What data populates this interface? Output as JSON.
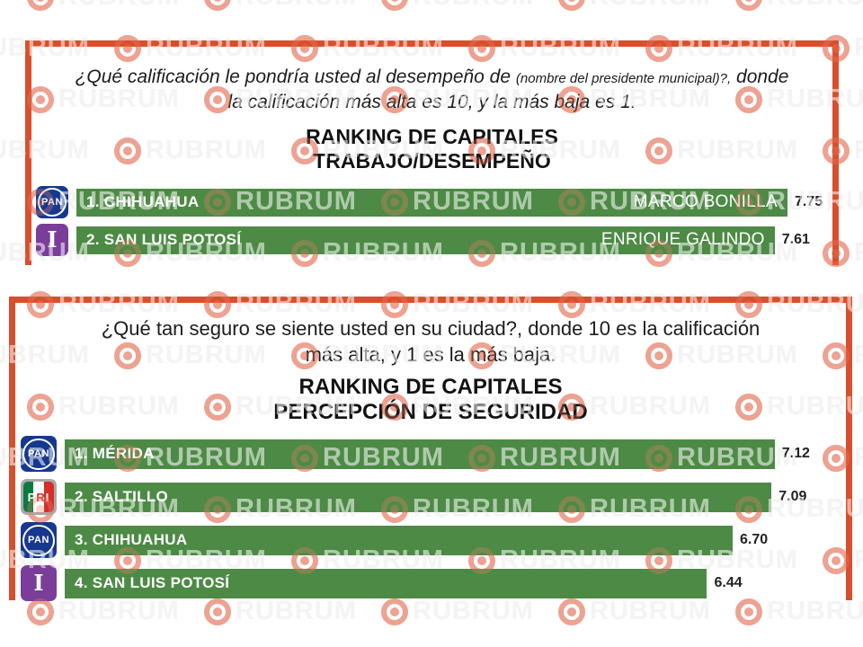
{
  "watermark": {
    "text": "RUBRUM",
    "icon": "rubrum-target-icon"
  },
  "colors": {
    "panel_border": "#d94e2c",
    "bar_green": "#4d8a45",
    "pan_blue": "#16388f",
    "pri_green": "#0b7a40",
    "pri_red": "#d42f2a",
    "independent_purple": "#7a3d99",
    "watermark_gray": "#e7e7e7",
    "watermark_pink": "#f0b4a8"
  },
  "parties": {
    "PAN": {
      "label": "PAN"
    },
    "PRI": {
      "label": "PRI"
    },
    "INDEP": {
      "label": "I"
    }
  },
  "panels": [
    {
      "question_lead": "¿Qué calificación le pondría usted al desempeño de ",
      "question_small": "(nombre del presidente municipal)?,",
      "question_rest": " donde la calificación más alta es 10, y la más baja es 1.",
      "title1": "RANKING DE CAPITALES",
      "title2": "TRABAJO/DESEMPEÑO",
      "scale_max": 8.2,
      "rows": [
        {
          "party": "PAN",
          "label": "1. CHIHUAHUA",
          "name": "MARCO BONILLA",
          "value": 7.75
        },
        {
          "party": "INDEP",
          "label": "2. SAN LUIS POTOSÍ",
          "name": "ENRIQUE GALINDO",
          "value": 7.61
        }
      ]
    },
    {
      "question_lead": "¿Qué tan seguro se siente usted en su ciudad?, donde 10 es la calificación más alta, y  1 es la más baja.",
      "question_small": "",
      "question_rest": "",
      "title1": "RANKING DE CAPITALES",
      "title2": "PERCEPCIÓN DE SEGURIDAD",
      "scale_max": 7.8,
      "rows": [
        {
          "party": "PAN",
          "label": "1. MÉRIDA",
          "name": "",
          "value": 7.12
        },
        {
          "party": "PRI",
          "label": "2. SALTILLO",
          "name": "",
          "value": 7.09
        },
        {
          "party": "PAN",
          "label": "3. CHIHUAHUA",
          "name": "",
          "value": 6.7
        },
        {
          "party": "INDEP",
          "label": "4. SAN LUIS POTOSÍ",
          "name": "",
          "value": 6.44
        }
      ]
    }
  ],
  "chart_data": [
    {
      "type": "bar",
      "orientation": "horizontal",
      "title": "RANKING DE CAPITALES TRABAJO/DESEMPEÑO",
      "subtitle": "¿Qué calificación le pondría usted al desempeño de (nombre del presidente municipal)?, donde la calificación más alta es 10, y la más baja es 1.",
      "categories": [
        "1. CHIHUAHUA",
        "2. SAN LUIS POTOSÍ"
      ],
      "values": [
        7.75,
        7.61
      ],
      "annotations": [
        "MARCO BONILLA",
        "ENRIQUE GALINDO"
      ],
      "parties": [
        "PAN",
        "INDEPENDIENTE"
      ],
      "xlim": [
        0,
        8.2
      ],
      "bar_color": "#4d8a45",
      "grid": false,
      "legend": false
    },
    {
      "type": "bar",
      "orientation": "horizontal",
      "title": "RANKING DE CAPITALES PERCEPCIÓN DE SEGURIDAD",
      "subtitle": "¿Qué tan seguro se siente usted en su ciudad?, donde 10 es la calificación más alta, y  1 es la más baja.",
      "categories": [
        "1. MÉRIDA",
        "2. SALTILLO",
        "3. CHIHUAHUA",
        "4. SAN LUIS POTOSÍ"
      ],
      "values": [
        7.12,
        7.09,
        6.7,
        6.44
      ],
      "annotations": [
        "",
        "",
        "",
        ""
      ],
      "parties": [
        "PAN",
        "PRI",
        "PAN",
        "INDEPENDIENTE"
      ],
      "xlim": [
        0,
        7.8
      ],
      "bar_color": "#4d8a45",
      "grid": false,
      "legend": false
    }
  ]
}
